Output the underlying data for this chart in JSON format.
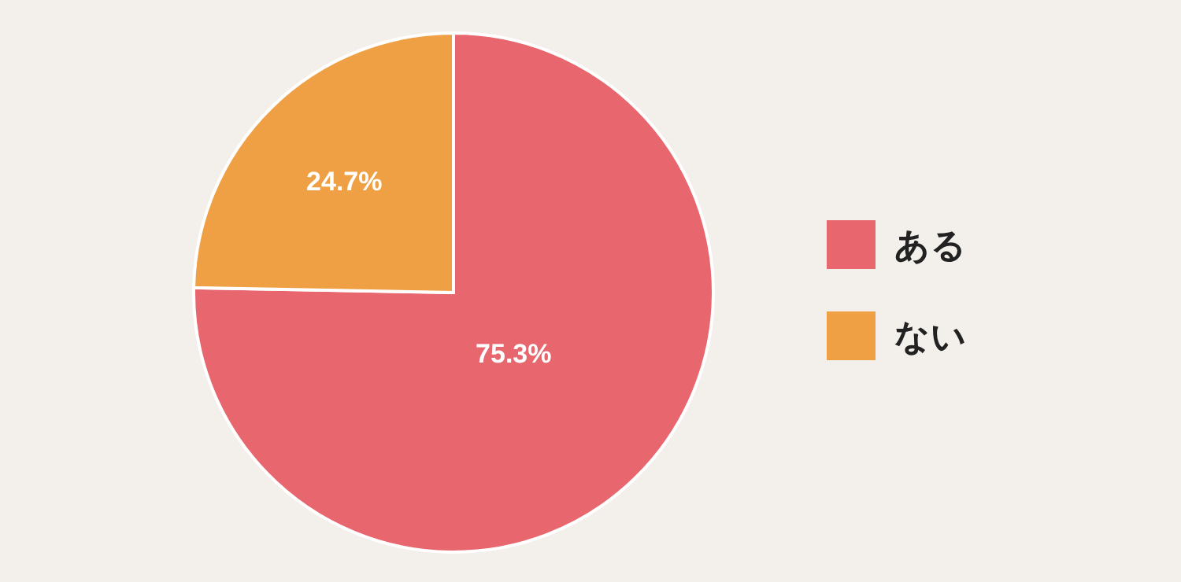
{
  "chart_data": {
    "type": "pie",
    "categories": [
      "ある",
      "ない"
    ],
    "values": [
      75.3,
      24.7
    ],
    "colors": [
      "#e8666e",
      "#f0a044"
    ],
    "value_labels": [
      "75.3%",
      "24.7%"
    ],
    "legend": "right"
  }
}
